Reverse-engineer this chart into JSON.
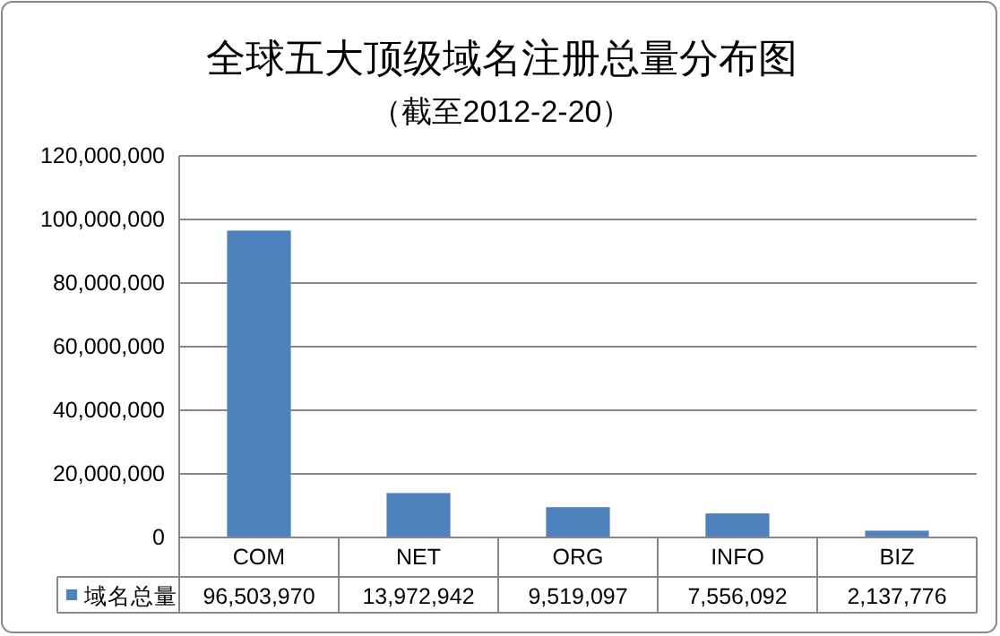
{
  "chart_data": {
    "type": "bar",
    "title": "全球五大顶级域名注册总量分布图",
    "subtitle": "（截至2012-2-20）",
    "categories": [
      "COM",
      "NET",
      "ORG",
      "INFO",
      "BIZ"
    ],
    "series": [
      {
        "name": "域名总量",
        "color": "#4f81bd",
        "values": [
          96503970,
          13972942,
          9519097,
          7556092,
          2137776
        ],
        "value_labels": [
          "96,503,970",
          "13,972,942",
          "9,519,097",
          "7,556,092",
          "2,137,776"
        ]
      }
    ],
    "ylim": [
      0,
      120000000
    ],
    "yticks": [
      0,
      {
        "value": 20000000,
        "label": "20,000,000"
      },
      {
        "value": 40000000,
        "label": "40,000,000"
      },
      {
        "value": 60000000,
        "label": "60,000,000"
      },
      {
        "value": 80000000,
        "label": "80,000,000"
      },
      {
        "value": 100000000,
        "label": "100,000,000"
      },
      {
        "value": 120000000,
        "label": "120,000,000"
      }
    ],
    "grid": "y",
    "legend": "bottom"
  }
}
